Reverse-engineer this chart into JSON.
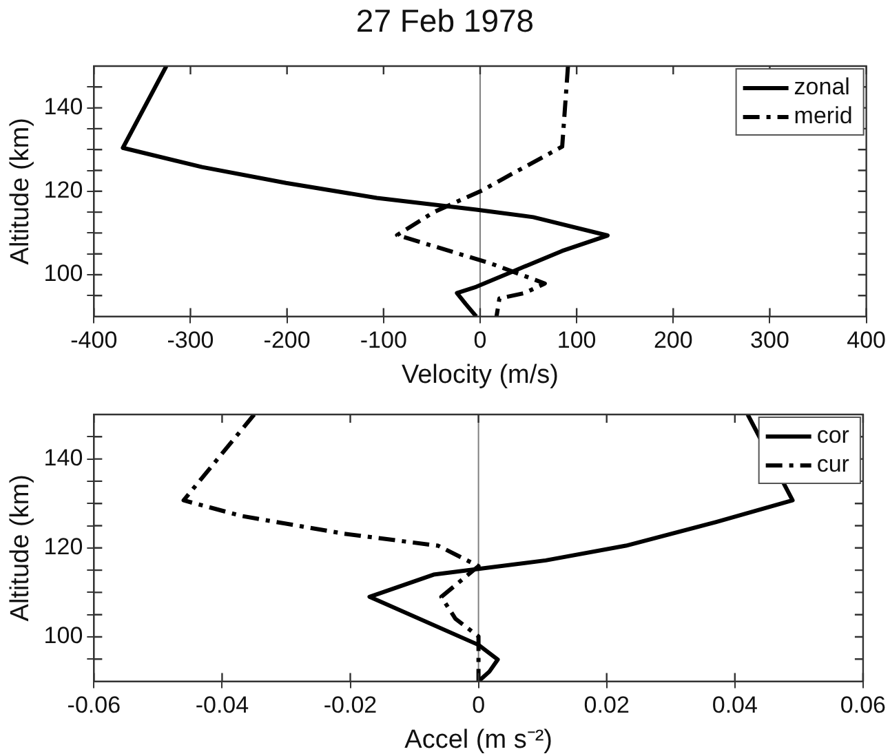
{
  "chart_data": [
    {
      "type": "line",
      "title": "27 Feb 1978",
      "xlabel": "Velocity (m/s)",
      "ylabel": "Altitude (km)",
      "xlim": [
        -400,
        400
      ],
      "xticks": [
        -400,
        -300,
        -200,
        -100,
        0,
        100,
        200,
        300,
        400
      ],
      "ylim": [
        90,
        150
      ],
      "yticks": [
        {
          "value": 95,
          "label": null
        },
        100,
        {
          "value": 105,
          "label": null
        },
        {
          "value": 110,
          "label": null
        },
        {
          "value": 115,
          "label": null
        },
        120,
        {
          "value": 125,
          "label": null
        },
        {
          "value": 130,
          "label": null
        },
        {
          "value": 135,
          "label": null
        },
        140,
        {
          "value": 145,
          "label": null
        }
      ],
      "grid": false,
      "legend": "top right",
      "marker": "none",
      "ref_lines": [
        {
          "axis": "x",
          "value": 0,
          "color": "#808080"
        }
      ],
      "series": [
        {
          "name": "zonal",
          "color": "#000000",
          "line_style": "solid",
          "x": [
            -325,
            -370,
            -288,
            -201,
            -107,
            -4,
            55,
            132,
            85,
            34,
            -4,
            -24,
            -15,
            -4
          ],
          "values": [
            150,
            130.4,
            125.8,
            122,
            118.4,
            115.6,
            113.8,
            109.4,
            105.7,
            100.8,
            97.1,
            95.6,
            93,
            90
          ]
        },
        {
          "name": "merid",
          "color": "#000000",
          "line_style": "dashed",
          "x": [
            91,
            85,
            38,
            2,
            -48,
            -86,
            11,
            67,
            46,
            20,
            17
          ],
          "values": [
            150,
            130.7,
            124.8,
            120.2,
            115,
            109.5,
            102.7,
            97.9,
            95.6,
            94.3,
            90
          ]
        }
      ]
    },
    {
      "type": "line",
      "xlabel": "Accel (m s⁻²)",
      "ylabel": "Altitude (km)",
      "xlim": [
        -0.06,
        0.06
      ],
      "xticks": [
        -0.06,
        -0.04,
        -0.02,
        0,
        0.02,
        0.04,
        0.06
      ],
      "ylim": [
        90,
        150
      ],
      "yticks": [
        {
          "value": 95,
          "label": null
        },
        100,
        {
          "value": 105,
          "label": null
        },
        {
          "value": 110,
          "label": null
        },
        {
          "value": 115,
          "label": null
        },
        120,
        {
          "value": 125,
          "label": null
        },
        {
          "value": 130,
          "label": null
        },
        {
          "value": 135,
          "label": null
        },
        140,
        {
          "value": 145,
          "label": null
        }
      ],
      "grid": false,
      "legend": "top right",
      "marker": "none",
      "ref_lines": [
        {
          "axis": "x",
          "value": 0,
          "color": "#808080"
        }
      ],
      "series": [
        {
          "name": "cor",
          "color": "#000000",
          "line_style": "solid",
          "x": [
            0.042,
            0.049,
            0.037,
            0.023,
            0.0105,
            0,
            -0.007,
            -0.017,
            0,
            0.003,
            0.0017,
            0
          ],
          "values": [
            150,
            130.7,
            125.8,
            120.5,
            117.2,
            115.3,
            114,
            109,
            98.2,
            94.9,
            92.2,
            90
          ]
        },
        {
          "name": "cur",
          "color": "#000000",
          "line_style": "dashed",
          "x": [
            -0.035,
            -0.046,
            -0.037,
            -0.021,
            -0.0063,
            0,
            -0.0058,
            -0.0036,
            0,
            0
          ],
          "values": [
            150,
            130.7,
            127.2,
            123.2,
            120.5,
            115.9,
            109,
            104.1,
            100.1,
            90
          ]
        }
      ]
    }
  ]
}
